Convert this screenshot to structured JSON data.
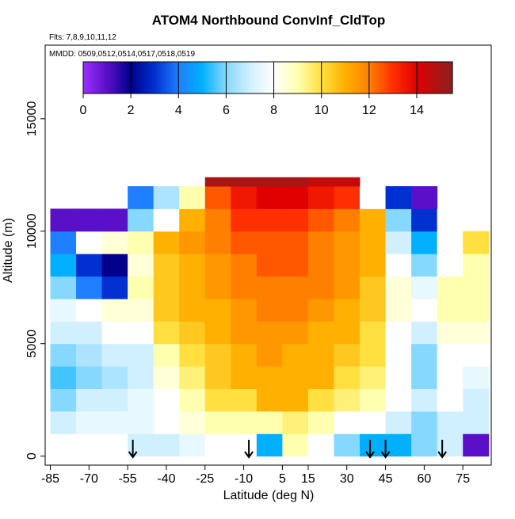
{
  "chart_data": {
    "type": "heatmap",
    "title": "ATOM4 Northbound ConvInf_CldTop",
    "subtitle": "Flts: 7,8,9,10,11,12",
    "annotation": "MMDD: 0509,0512,0514,0517,0518,0519",
    "xlabel": "Latitude (deg N)",
    "ylabel": "Altitude (m)",
    "xlim": [
      -87,
      86
    ],
    "ylim": [
      -400,
      18270
    ],
    "xticks": [
      -85,
      -70,
      -55,
      -40,
      -25,
      -10,
      5,
      15,
      30,
      45,
      60,
      75
    ],
    "yticks": [
      0,
      5000,
      10000,
      15000
    ],
    "x_edges": [
      -85,
      -75,
      -65,
      -55,
      -45,
      -35,
      -25,
      -15,
      -5,
      5,
      15,
      25,
      35,
      45,
      55,
      65,
      75,
      85
    ],
    "y_edges": [
      0,
      1000,
      2000,
      3000,
      4000,
      5000,
      6000,
      7000,
      8000,
      9000,
      10000,
      11000,
      12000,
      12400
    ],
    "z": [
      [
        null,
        null,
        null,
        7,
        7,
        7.5,
        8,
        8,
        5,
        9,
        8,
        6,
        5,
        5,
        6,
        7,
        1
      ],
      [
        7,
        7.5,
        7.5,
        7.5,
        8,
        8.5,
        9,
        9,
        9,
        9.5,
        9,
        8,
        8,
        7,
        6,
        7,
        7
      ],
      [
        6,
        7,
        7,
        7.5,
        8,
        9,
        10,
        10,
        11,
        11,
        10,
        9.5,
        9,
        8,
        7,
        8,
        7
      ],
      [
        5.5,
        6,
        6.5,
        7,
        8.5,
        9.5,
        10.5,
        11,
        11,
        11,
        11,
        10,
        9.5,
        8,
        6,
        8,
        7.5
      ],
      [
        6,
        6.5,
        7,
        7,
        9,
        10,
        10.5,
        11,
        11.5,
        11,
        11,
        10.5,
        10,
        8,
        6,
        8,
        8
      ],
      [
        7,
        7,
        8,
        8,
        10,
        10.5,
        11,
        11.5,
        11.5,
        11.5,
        11,
        11,
        10,
        8,
        7,
        8.5,
        8.5
      ],
      [
        7.5,
        8,
        8.5,
        8.5,
        10.5,
        11,
        11,
        11.5,
        12,
        12,
        11.5,
        11,
        10.5,
        8.5,
        8,
        9,
        9
      ],
      [
        6,
        4,
        3,
        9,
        10.5,
        11,
        11.5,
        12,
        12,
        12,
        12,
        11.5,
        10.5,
        8.5,
        7.5,
        9,
        9
      ],
      [
        5,
        3,
        2,
        8.5,
        10.5,
        11,
        11.5,
        12,
        12.5,
        12.5,
        12,
        11.5,
        11,
        8,
        6,
        8,
        9
      ],
      [
        4,
        8,
        8.5,
        9,
        11,
        11.5,
        12,
        12.5,
        12.5,
        12.5,
        12,
        11.5,
        11,
        7,
        5,
        8,
        10
      ],
      [
        1,
        1,
        1,
        6,
        8,
        11,
        12,
        13,
        13,
        13,
        12.5,
        12,
        11,
        6,
        3,
        8,
        null
      ],
      [
        null,
        null,
        null,
        4,
        6.5,
        9,
        12.5,
        13.5,
        14,
        14,
        13.5,
        13,
        8,
        3,
        1,
        null,
        null
      ],
      [
        null,
        null,
        null,
        null,
        null,
        null,
        15,
        15,
        15,
        15,
        14.5,
        14.5,
        null,
        null,
        null,
        null,
        null
      ]
    ],
    "zlim": [
      0,
      15.5
    ],
    "zticks": [
      0,
      2,
      4,
      6,
      8,
      10,
      12,
      14
    ],
    "colorscale": [
      [
        0,
        "#9b30ff"
      ],
      [
        1,
        "#5a10c8"
      ],
      [
        2,
        "#00008b"
      ],
      [
        3,
        "#0030d0"
      ],
      [
        4,
        "#1e7fff"
      ],
      [
        5,
        "#00b0ff"
      ],
      [
        6,
        "#87d8ff"
      ],
      [
        7,
        "#d0f0ff"
      ],
      [
        8,
        "#ffffff"
      ],
      [
        9,
        "#ffffb0"
      ],
      [
        10,
        "#ffe040"
      ],
      [
        11,
        "#ffb000"
      ],
      [
        12,
        "#ff8000"
      ],
      [
        13,
        "#ff3000"
      ],
      [
        14,
        "#e00000"
      ],
      [
        15.5,
        "#8b2020"
      ]
    ],
    "arrows": [
      -53,
      -8,
      39,
      45,
      67
    ]
  }
}
